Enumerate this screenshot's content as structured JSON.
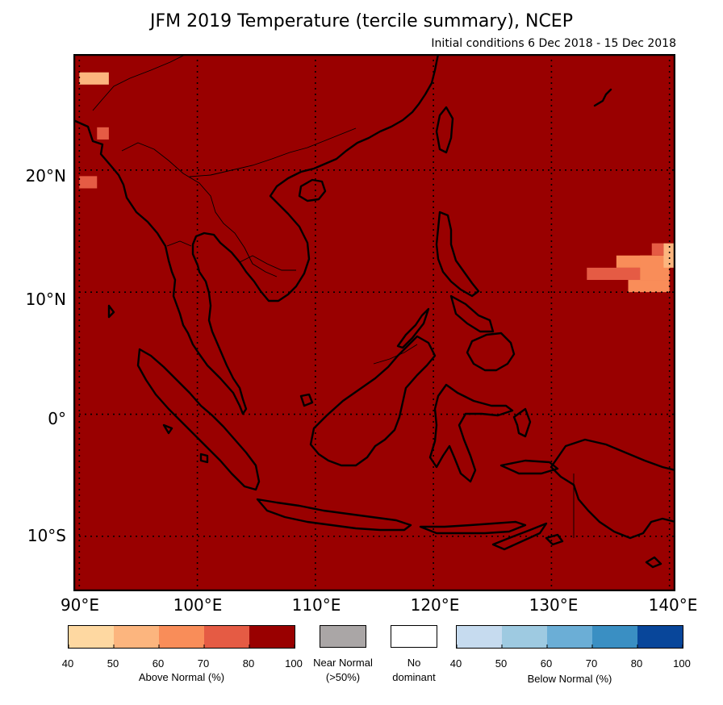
{
  "title": "JFM 2019 Temperature (tercile summary), NCEP",
  "subtitle": "Initial conditions 6 Dec 2018 - 15 Dec 2018",
  "map": {
    "lon_range": [
      89.5,
      140.5
    ],
    "lat_range": [
      -14.5,
      29.5
    ],
    "background_color": "#990000",
    "lat_labels": [
      "20°N",
      "10°N",
      "0°",
      "10°S"
    ],
    "lon_labels": [
      "90°E",
      "100°E",
      "110°E",
      "120°E",
      "130°E",
      "140°E"
    ],
    "gridlines": "dotted",
    "anomaly_cells": [
      {
        "lon": [
          90,
          92.5
        ],
        "lat": [
          27,
          28
        ],
        "category": "above",
        "pct": "50-60"
      },
      {
        "lon": [
          91.5,
          92.5
        ],
        "lat": [
          22.5,
          23.5
        ],
        "category": "above",
        "pct": "70-80"
      },
      {
        "lon": [
          90,
          91.5
        ],
        "lat": [
          18.5,
          19.5
        ],
        "category": "above",
        "pct": "70-80"
      },
      {
        "lon": [
          133,
          137.5
        ],
        "lat": [
          11,
          12
        ],
        "category": "above",
        "pct": "70-80"
      },
      {
        "lon": [
          135.5,
          138.5
        ],
        "lat": [
          12,
          13
        ],
        "category": "above",
        "pct": "60-70"
      },
      {
        "lon": [
          136.5,
          140
        ],
        "lat": [
          10,
          11
        ],
        "category": "above",
        "pct": "60-70"
      },
      {
        "lon": [
          137.5,
          140
        ],
        "lat": [
          11,
          13
        ],
        "category": "above",
        "pct": "60-70"
      },
      {
        "lon": [
          138.5,
          139.5
        ],
        "lat": [
          13,
          14
        ],
        "category": "above",
        "pct": "70-80"
      },
      {
        "lon": [
          139.5,
          140.5
        ],
        "lat": [
          12,
          14
        ],
        "category": "above",
        "pct": "50-60"
      }
    ]
  },
  "legend": {
    "above": {
      "caption": "Above Normal (%)",
      "ticks": [
        "40",
        "50",
        "60",
        "70",
        "80",
        "100"
      ],
      "colors": [
        "#fed8a1",
        "#fcb57e",
        "#f98d59",
        "#e55b44",
        "#990000"
      ]
    },
    "near": {
      "caption_line1": "Near Normal",
      "caption_line2": "(>50%)",
      "color": "#aaa6a6"
    },
    "nodominant": {
      "caption_line1": "No",
      "caption_line2": "dominant",
      "color": "#ffffff"
    },
    "below": {
      "caption": "Below Normal (%)",
      "ticks": [
        "40",
        "50",
        "60",
        "70",
        "80",
        "100"
      ],
      "colors": [
        "#c6dbef",
        "#9ecae1",
        "#6baed6",
        "#3a8fc3",
        "#08469a"
      ]
    }
  }
}
